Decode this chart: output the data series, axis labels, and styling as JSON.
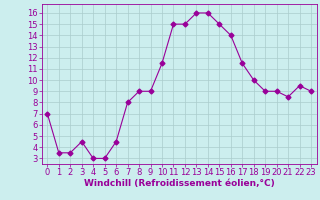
{
  "x": [
    0,
    1,
    2,
    3,
    4,
    5,
    6,
    7,
    8,
    9,
    10,
    11,
    12,
    13,
    14,
    15,
    16,
    17,
    18,
    19,
    20,
    21,
    22,
    23
  ],
  "y": [
    7,
    3.5,
    3.5,
    4.5,
    3,
    3,
    4.5,
    8,
    9,
    9,
    11.5,
    15,
    15,
    16,
    16,
    15,
    14,
    11.5,
    10,
    9,
    9,
    8.5,
    9.5,
    9
  ],
  "line_color": "#990099",
  "marker": "D",
  "marker_size": 2.5,
  "bg_color": "#cceeee",
  "grid_color": "#aacccc",
  "xlabel": "Windchill (Refroidissement éolien,°C)",
  "xlabel_color": "#990099",
  "xlabel_fontsize": 6.5,
  "tick_color": "#990099",
  "tick_fontsize": 6,
  "ylim": [
    2.5,
    16.8
  ],
  "xlim": [
    -0.5,
    23.5
  ],
  "yticks": [
    3,
    4,
    5,
    6,
    7,
    8,
    9,
    10,
    11,
    12,
    13,
    14,
    15,
    16
  ],
  "xticks": [
    0,
    1,
    2,
    3,
    4,
    5,
    6,
    7,
    8,
    9,
    10,
    11,
    12,
    13,
    14,
    15,
    16,
    17,
    18,
    19,
    20,
    21,
    22,
    23
  ]
}
